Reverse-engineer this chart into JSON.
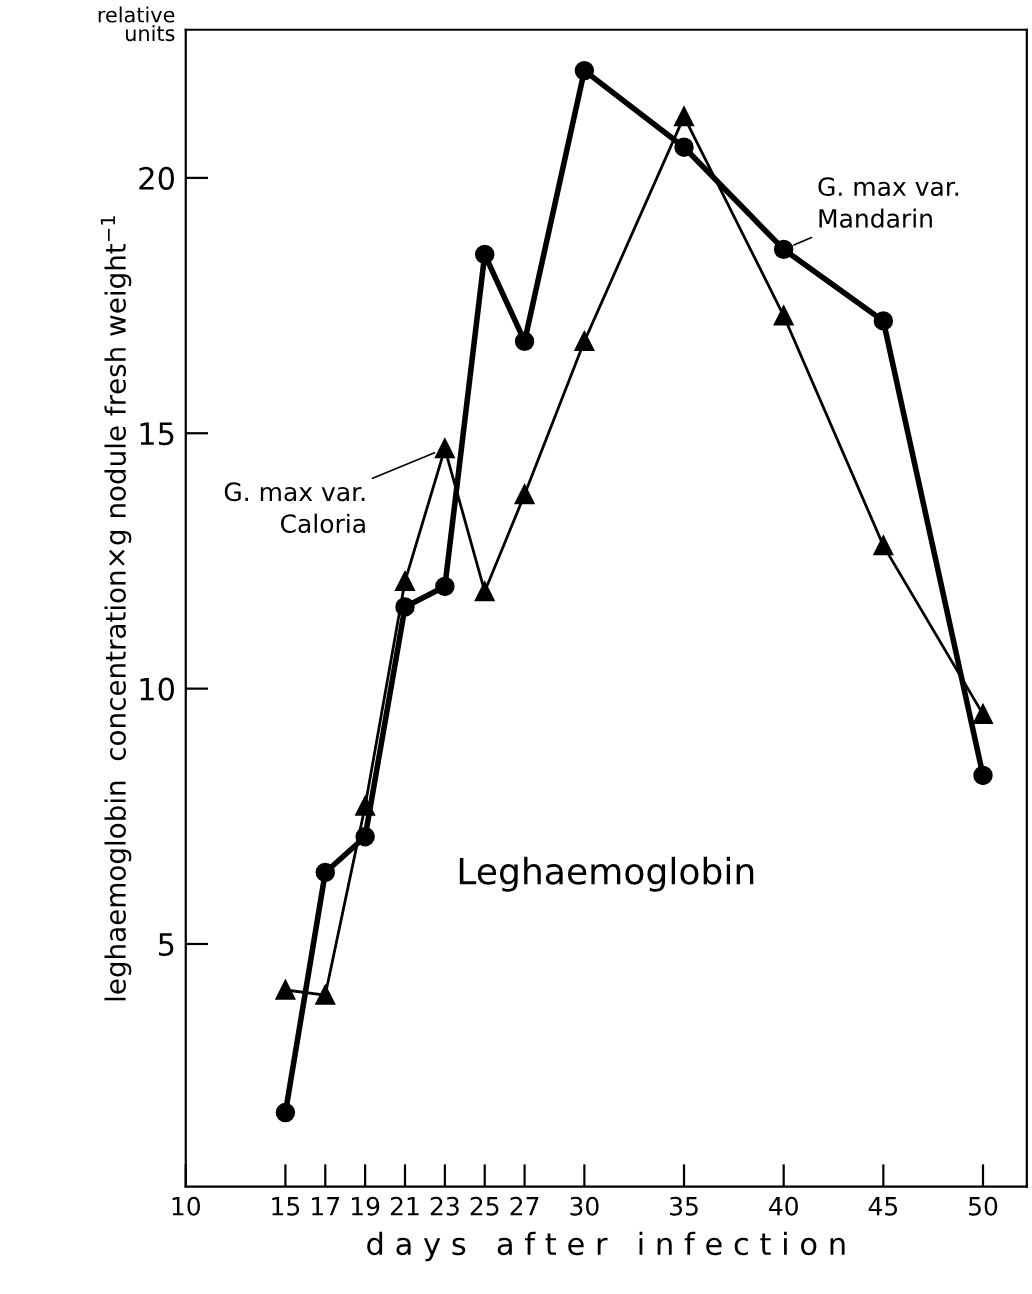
{
  "chart_data": {
    "type": "line",
    "xlabel": "d a y s   a f t e r   i n f e c t i o n",
    "ylabel": "leghaemoglobin  concentration×g nodule fresh weight$^{−1}$",
    "x": [
      15,
      17,
      19,
      21,
      23,
      25,
      27,
      30,
      35,
      40,
      45,
      50
    ],
    "series": [
      {
        "name": "G. max var.\nMandarin",
        "color": "#000000",
        "marker": "circle",
        "values": [
          1.7,
          6.4,
          7.1,
          11.6,
          12.0,
          18.5,
          16.8,
          22.1,
          20.6,
          18.6,
          17.2,
          8.3
        ]
      },
      {
        "name": "G. max var.\nCaloria",
        "color": "#000000",
        "marker": "triangle",
        "values": [
          4.1,
          4.0,
          7.7,
          12.1,
          14.7,
          11.9,
          13.8,
          16.8,
          21.2,
          17.3,
          12.8,
          9.5
        ]
      }
    ],
    "annotations": [
      "relative\nunits",
      "Leghaemoglobin"
    ],
    "xlim": [
      10,
      52.2
    ],
    "ylim": [
      0.25,
      22.9
    ],
    "xticks": [
      10,
      15,
      17,
      19,
      21,
      23,
      25,
      27,
      30,
      35,
      40,
      45,
      50
    ],
    "yticks": [
      5,
      10,
      15,
      20
    ],
    "grid": false,
    "legend": false,
    "line_style": "solid"
  }
}
